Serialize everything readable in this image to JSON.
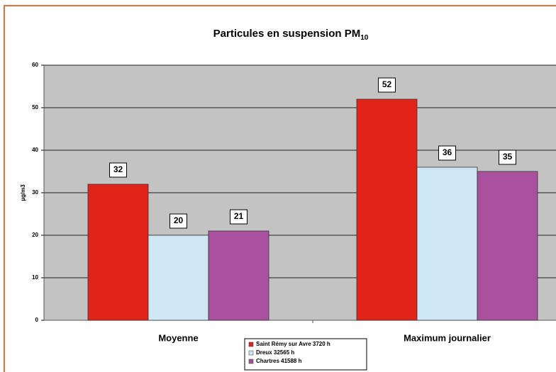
{
  "chart_data": {
    "type": "bar",
    "title": "Particules en suspension PM",
    "title_subscript": "10",
    "y_axis_label": "µg/m3",
    "categories": [
      "Moyenne",
      "Maximum journalier"
    ],
    "series": [
      {
        "name": "Saint Rémy sur Avre 3720 h",
        "color": "#e2231a",
        "values": [
          32,
          52
        ]
      },
      {
        "name": "Dreux 32565 h",
        "color": "#cfe7f5",
        "values": [
          20,
          36
        ]
      },
      {
        "name": "Chartres 41588 h",
        "color": "#a9519e",
        "values": [
          21,
          35
        ]
      }
    ],
    "ylim": [
      0,
      60
    ],
    "yticks": [
      0,
      10,
      20,
      30,
      40,
      50,
      60
    ],
    "grid": true,
    "plot_background": "#c3c3c3",
    "legend": "bottom"
  }
}
